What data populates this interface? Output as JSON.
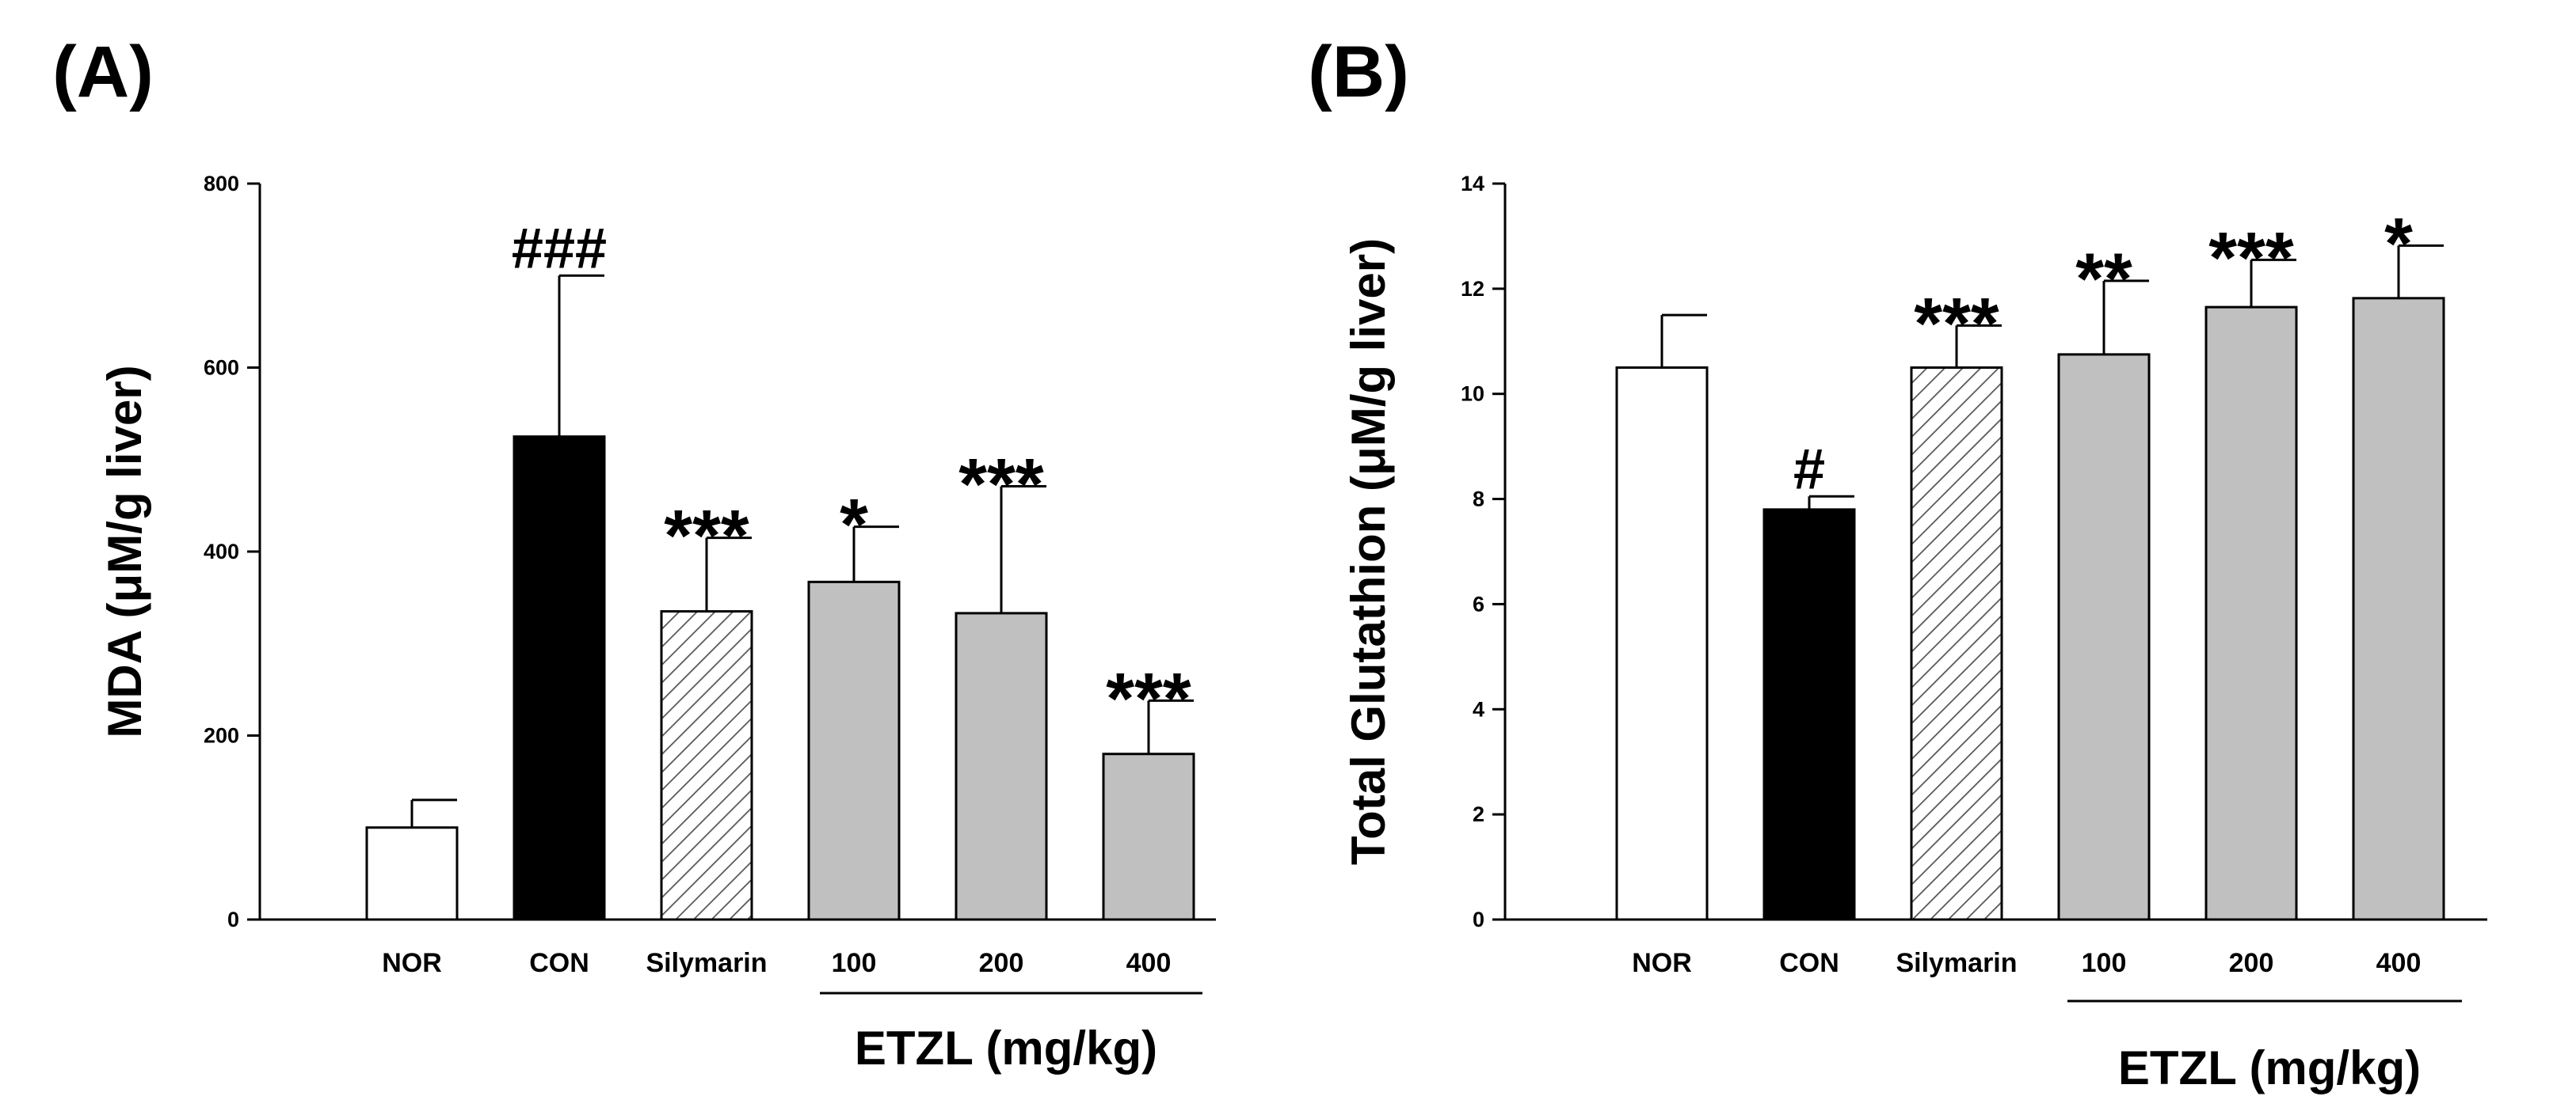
{
  "chart_data": [
    {
      "panel_label": "(A)",
      "type": "bar",
      "categories": [
        "NOR",
        "CON",
        "Silymarin",
        "100",
        "200",
        "400"
      ],
      "values": [
        100,
        525,
        335,
        367,
        333,
        180
      ],
      "errors": [
        30,
        175,
        80,
        60,
        138,
        58
      ],
      "significance": [
        "",
        "###",
        "***",
        "*",
        "***",
        "***"
      ],
      "fills": [
        "white",
        "black",
        "hatched",
        "gray",
        "gray",
        "gray"
      ],
      "ylabel": "MDA (μM/g liver)",
      "yticks": [
        0,
        200,
        400,
        600,
        800
      ],
      "ylim": [
        0,
        800
      ],
      "xlabel": "ETZL (mg/kg)",
      "grid": false
    },
    {
      "panel_label": "(B)",
      "type": "bar",
      "categories": [
        "NOR",
        "CON",
        "Silymarin",
        "100",
        "200",
        "400"
      ],
      "values": [
        10.5,
        7.8,
        10.5,
        10.75,
        11.65,
        11.82
      ],
      "errors": [
        1.0,
        0.25,
        0.8,
        1.4,
        0.9,
        1.0
      ],
      "significance": [
        "",
        "#",
        "***",
        "**",
        "***",
        "*"
      ],
      "fills": [
        "white",
        "black",
        "hatched",
        "gray",
        "gray",
        "gray"
      ],
      "ylabel": "Total Glutathion (μM/g liver)",
      "yticks": [
        0,
        2,
        4,
        6,
        8,
        10,
        12,
        14
      ],
      "ylim": [
        0,
        14
      ],
      "xlabel": "ETZL (mg/kg)",
      "grid": false
    }
  ],
  "colors": {
    "white": "#ffffff",
    "black": "#000000",
    "gray": "#c0c0c0",
    "hatch": "#c0c0c0",
    "axis": "#000000"
  }
}
